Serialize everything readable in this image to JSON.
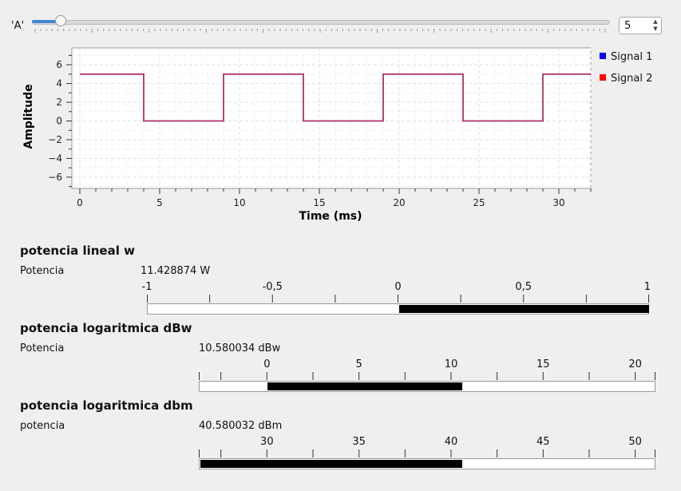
{
  "slider": {
    "label": "'A'",
    "value": 5,
    "min": 0,
    "max": 100,
    "spinbox_value": "5"
  },
  "chart_data": {
    "type": "line",
    "xlabel": "Time (ms)",
    "ylabel": "Amplitude",
    "xlim": [
      -0.5,
      32
    ],
    "ylim": [
      -7.2,
      7.8
    ],
    "xticks": [
      0,
      5,
      10,
      15,
      20,
      25,
      30
    ],
    "yticks": [
      6,
      4,
      2,
      0,
      -2,
      -4,
      -6
    ],
    "grid": true,
    "legend_position": "right",
    "series": [
      {
        "name": "Signal 1",
        "color": "#0000ff",
        "x": [],
        "y": []
      },
      {
        "name": "Signal 2",
        "color": "#ff0000",
        "x": [],
        "y": []
      }
    ],
    "trace": {
      "color": "#b0306a",
      "x": [
        0,
        4,
        4,
        9,
        9,
        14,
        14,
        19,
        19,
        24,
        24,
        29,
        29,
        32
      ],
      "y": [
        5,
        5,
        0,
        0,
        5,
        5,
        0,
        0,
        5,
        5,
        0,
        0,
        5,
        5
      ]
    }
  },
  "sections": [
    {
      "title": "potencia lineal w",
      "label": "Potencia",
      "value_text": "11.428874 W",
      "tick_labels": [
        "-1",
        "-0,5",
        "0",
        "0,5",
        "1"
      ],
      "min": -1,
      "max": 1,
      "fill_from": 0,
      "fill_to": 1
    },
    {
      "title": "potencia logaritmica dBw",
      "label": "Potencia",
      "value_text": "10.580034 dBw",
      "tick_labels": [
        "0",
        "5",
        "10",
        "15",
        "20"
      ],
      "min": -3.7,
      "max": 21.1,
      "fill_from": 0,
      "fill_to": 10.58
    },
    {
      "title": "potencia logaritmica dbm",
      "label": "potencia",
      "value_text": "40.580032 dBm",
      "tick_labels": [
        "30",
        "35",
        "40",
        "45",
        "50"
      ],
      "min": 26.3,
      "max": 51.1,
      "fill_from": 26.3,
      "fill_to": 40.58
    }
  ]
}
